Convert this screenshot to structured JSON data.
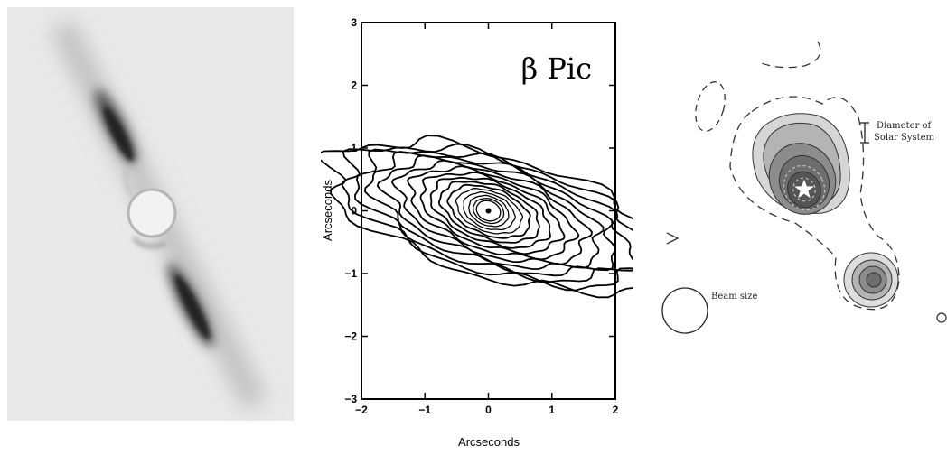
{
  "middle_panel": {
    "title": "β Pic",
    "xlabel": "Arcseconds",
    "ylabel": "Arcseconds"
  },
  "right_panel": {
    "scale_label_1": "Diameter of",
    "scale_label_2": "Solar System",
    "beam_label": "Beam size"
  },
  "chart_data": {
    "type": "contour",
    "title": "β Pic",
    "xlabel": "Arcseconds",
    "ylabel": "Arcseconds",
    "xlim": [
      -2,
      2
    ],
    "ylim": [
      -3,
      3
    ],
    "xticks": [
      -2,
      -1,
      0,
      1,
      2
    ],
    "yticks": [
      -3,
      -2,
      -1,
      0,
      1,
      2,
      3
    ],
    "x_tick_labels": [
      "−2",
      "−1",
      "0",
      "1",
      "2"
    ],
    "y_tick_labels": [
      "−3",
      "−2",
      "−1",
      "0",
      "1",
      "2",
      "3"
    ],
    "peak": [
      0,
      0
    ]
  }
}
